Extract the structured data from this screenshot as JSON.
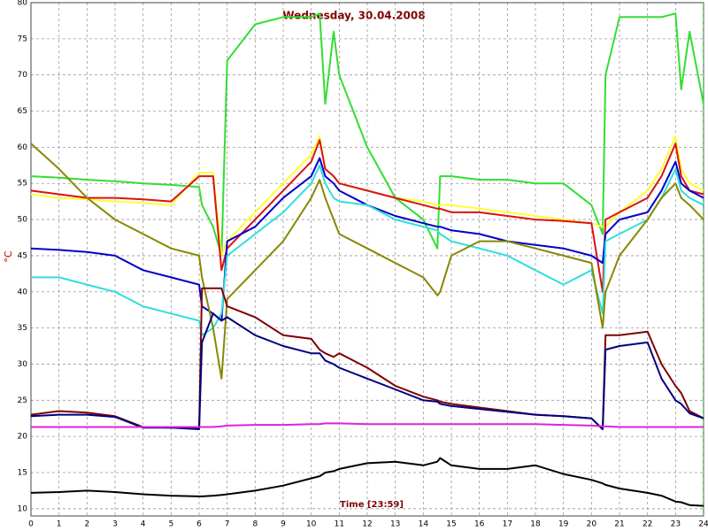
{
  "chart_data": {
    "type": "line",
    "title": "Wednesday, 30.04.2008",
    "x_label": "Time [23:59]",
    "y_label": "°C",
    "x": [
      0,
      1,
      2,
      3,
      4,
      5,
      6,
      6.1,
      6.5,
      6.8,
      7,
      8,
      9,
      10,
      10.3,
      10.5,
      10.8,
      11,
      12,
      13,
      14,
      14.5,
      14.6,
      15,
      16,
      17,
      18,
      19,
      20,
      20.4,
      20.5,
      21,
      22,
      22.5,
      23,
      23.2,
      23.5,
      24
    ],
    "series": [
      {
        "color": "#33dd33",
        "values": [
          56,
          55.8,
          55.5,
          55.3,
          55,
          54.8,
          54.5,
          52,
          49,
          45,
          72,
          77,
          78,
          78,
          78.5,
          66,
          76,
          70,
          60,
          53,
          50,
          46,
          56,
          56,
          55.5,
          55.5,
          55,
          55,
          52,
          48,
          70,
          78,
          78,
          78,
          78.5,
          68,
          76,
          66
        ]
      },
      {
        "color": "#ffff33",
        "values": [
          53.5,
          53,
          52.8,
          52.5,
          52.3,
          52,
          56.5,
          56.5,
          56.5,
          45,
          47,
          51,
          55,
          59,
          61.5,
          57,
          56,
          55,
          54,
          53,
          52.5,
          52,
          52,
          52,
          51.5,
          51,
          50.5,
          50,
          49.5,
          49,
          49,
          51,
          54,
          57,
          61.5,
          57,
          55,
          54
        ]
      },
      {
        "color": "#dd1111",
        "values": [
          54,
          53.5,
          53,
          53,
          52.8,
          52.5,
          56,
          56,
          56,
          43,
          46,
          50,
          54,
          58,
          61,
          57,
          56,
          55,
          54,
          53,
          52,
          51.5,
          51.5,
          51,
          51,
          50.5,
          50,
          49.8,
          49.5,
          40,
          50,
          51,
          53,
          56,
          60.5,
          56,
          54,
          53.5
        ]
      },
      {
        "color": "#0000cc",
        "values": [
          46,
          45.8,
          45.5,
          45,
          43,
          42,
          41,
          38,
          37,
          36,
          47,
          49,
          53,
          56,
          58.5,
          56,
          55,
          54,
          52,
          50.5,
          49.5,
          49,
          49,
          48.5,
          48,
          47,
          46.5,
          46,
          45,
          44,
          48,
          50,
          51,
          54,
          58,
          55,
          54,
          53
        ]
      },
      {
        "color": "#33dddd",
        "values": [
          42,
          42,
          41,
          40,
          38,
          37,
          36,
          34,
          35,
          37,
          45,
          48,
          51,
          55,
          57.5,
          55,
          53,
          52.5,
          52,
          50,
          49,
          48.5,
          48,
          47,
          46,
          45,
          43,
          41,
          43,
          37,
          47,
          48,
          50,
          53,
          57,
          54,
          53,
          52
        ]
      },
      {
        "color": "#888800",
        "values": [
          60.5,
          57,
          53,
          50,
          48,
          46,
          45,
          42,
          35,
          28,
          39,
          43,
          47,
          53,
          55.5,
          53,
          50,
          48,
          46,
          44,
          42,
          39.5,
          40,
          45,
          47,
          47,
          46,
          45,
          44,
          35,
          40,
          45,
          50,
          53,
          55,
          53,
          52,
          50
        ]
      },
      {
        "color": "#800000",
        "values": [
          23,
          23.5,
          23.3,
          22.8,
          21.3,
          21.2,
          21.2,
          40.5,
          40.5,
          40.5,
          38,
          36.5,
          34,
          33.5,
          32,
          31.5,
          31,
          31.5,
          29.5,
          27,
          25.5,
          25,
          24.8,
          24.5,
          24,
          23.5,
          23,
          22.8,
          22.5,
          21,
          34,
          34,
          34.5,
          30,
          27,
          26,
          23.5,
          22.5
        ]
      },
      {
        "color": "#000080",
        "values": [
          22.8,
          23,
          23,
          22.7,
          21.2,
          21.2,
          21,
          33,
          37,
          36,
          36.5,
          34,
          32.5,
          31.5,
          31.5,
          30.5,
          30,
          29.5,
          28,
          26.5,
          25,
          24.8,
          24.5,
          24.2,
          23.8,
          23.4,
          23,
          22.8,
          22.5,
          21,
          32,
          32.5,
          33,
          28,
          25,
          24.5,
          23.2,
          22.5
        ]
      },
      {
        "color": "#dd22dd",
        "values": [
          21.3,
          21.3,
          21.3,
          21.3,
          21.3,
          21.3,
          21.3,
          21.3,
          21.3,
          21.4,
          21.5,
          21.6,
          21.6,
          21.7,
          21.7,
          21.8,
          21.8,
          21.8,
          21.7,
          21.7,
          21.7,
          21.7,
          21.7,
          21.7,
          21.7,
          21.7,
          21.7,
          21.6,
          21.5,
          21.4,
          21.4,
          21.3,
          21.3,
          21.3,
          21.3,
          21.3,
          21.3,
          21.3
        ]
      },
      {
        "color": "#000000",
        "values": [
          12.2,
          12.3,
          12.5,
          12.3,
          12,
          11.8,
          11.7,
          11.7,
          11.8,
          11.9,
          12,
          12.5,
          13.2,
          14.2,
          14.5,
          15,
          15.2,
          15.5,
          16.3,
          16.5,
          16,
          16.5,
          17,
          16,
          15.5,
          15.5,
          16,
          14.8,
          14,
          13.5,
          13.3,
          12.8,
          12.2,
          11.8,
          11,
          10.9,
          10.5,
          10.4
        ]
      }
    ],
    "xlim": [
      0,
      24
    ],
    "xticks": [
      0,
      1,
      2,
      3,
      4,
      5,
      6,
      7,
      8,
      9,
      10,
      11,
      12,
      13,
      14,
      15,
      16,
      17,
      18,
      19,
      20,
      21,
      22,
      23,
      24
    ],
    "ylim": [
      9,
      80
    ],
    "yticks": [
      10,
      15,
      20,
      25,
      30,
      35,
      40,
      45,
      50,
      55,
      60,
      65,
      70,
      75,
      80
    ],
    "grid": true
  }
}
